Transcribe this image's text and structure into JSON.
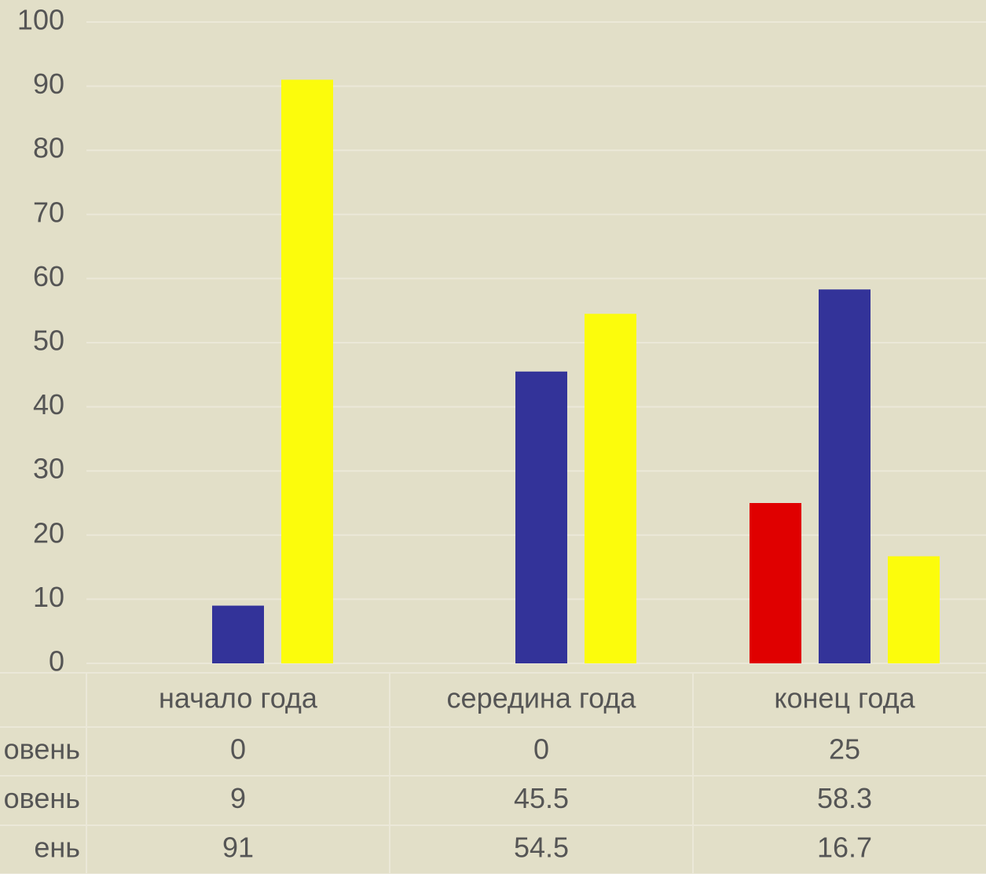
{
  "chart_data": {
    "type": "bar",
    "categories": [
      "начало года",
      "середина года",
      "конец года"
    ],
    "series": [
      {
        "name": "овень",
        "color": "#e00000",
        "values": [
          0,
          0,
          25
        ]
      },
      {
        "name": "овень",
        "color": "#333399",
        "values": [
          9,
          45.5,
          58.3
        ]
      },
      {
        "name": "ень",
        "color": "#fcfc0c",
        "values": [
          91,
          54.5,
          16.7
        ]
      }
    ],
    "ylim": [
      0,
      100
    ],
    "yticks": [
      0,
      10,
      20,
      30,
      40,
      50,
      60,
      70,
      80,
      90,
      100
    ],
    "grid": true
  }
}
